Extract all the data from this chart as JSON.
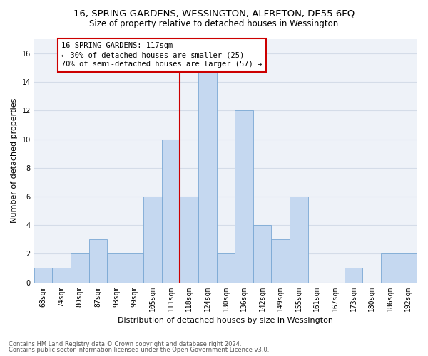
{
  "title": "16, SPRING GARDENS, WESSINGTON, ALFRETON, DE55 6FQ",
  "subtitle": "Size of property relative to detached houses in Wessington",
  "xlabel": "Distribution of detached houses by size in Wessington",
  "ylabel": "Number of detached properties",
  "categories": [
    "68sqm",
    "74sqm",
    "80sqm",
    "87sqm",
    "93sqm",
    "99sqm",
    "105sqm",
    "111sqm",
    "118sqm",
    "124sqm",
    "130sqm",
    "136sqm",
    "142sqm",
    "149sqm",
    "155sqm",
    "161sqm",
    "167sqm",
    "173sqm",
    "180sqm",
    "186sqm",
    "192sqm"
  ],
  "values": [
    1,
    1,
    2,
    3,
    2,
    2,
    6,
    10,
    6,
    15,
    2,
    12,
    4,
    3,
    6,
    0,
    0,
    1,
    0,
    2,
    2
  ],
  "bar_color": "#c5d8f0",
  "bar_edge_color": "#7aa8d4",
  "annotation_text": "16 SPRING GARDENS: 117sqm\n← 30% of detached houses are smaller (25)\n70% of semi-detached houses are larger (57) →",
  "annotation_box_color": "#ffffff",
  "annotation_box_edge": "#cc0000",
  "vline_color": "#cc0000",
  "ylim": [
    0,
    17
  ],
  "yticks": [
    0,
    2,
    4,
    6,
    8,
    10,
    12,
    14,
    16
  ],
  "grid_color": "#d4dce8",
  "bg_color": "#eef2f8",
  "footer1": "Contains HM Land Registry data © Crown copyright and database right 2024.",
  "footer2": "Contains public sector information licensed under the Open Government Licence v3.0.",
  "title_fontsize": 9.5,
  "subtitle_fontsize": 8.5,
  "xlabel_fontsize": 8,
  "ylabel_fontsize": 8,
  "tick_fontsize": 7,
  "annotation_fontsize": 7.5,
  "footer_fontsize": 6
}
